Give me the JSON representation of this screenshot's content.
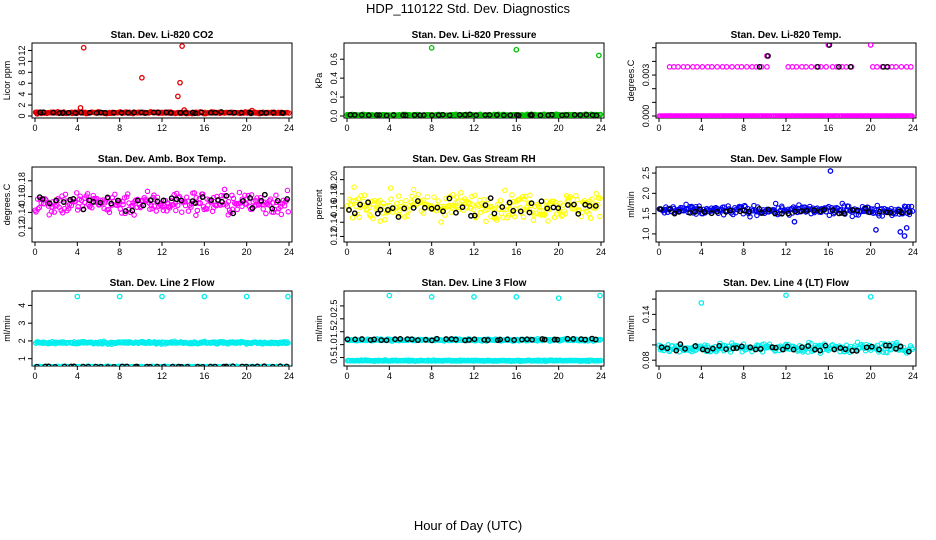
{
  "figure": {
    "title": "HDP_110122  Std. Dev. Diagnostics",
    "xlabel": "Hour of Day (UTC)"
  },
  "colors": {
    "red": "#e00000",
    "green": "#00c000",
    "magenta": "#ff00ff",
    "yellow": "#ffff00",
    "blue": "#0000ee",
    "cyan": "#00eeee",
    "black": "#000000"
  },
  "chart_data": [
    {
      "type": "scatter",
      "title": "Stan. Dev. Li-820 CO2",
      "ylabel": "Licor ppm",
      "xlim": [
        0,
        24
      ],
      "xticks": [
        0,
        4,
        8,
        12,
        16,
        20,
        24
      ],
      "ylim": [
        0,
        13
      ],
      "yticks": [
        0,
        2,
        4,
        6,
        8,
        10,
        12
      ],
      "ytick_labels": [
        "0",
        "2",
        "4",
        "6",
        "8",
        "10",
        "12"
      ],
      "color": "red",
      "series": [
        {
          "name": "baseline",
          "fill": {
            "mean": 0.6,
            "sd": 0.15
          }
        },
        {
          "name": "outliers",
          "x": [
            0.2,
            4.3,
            4.6,
            10.1,
            13.5,
            13.7,
            13.9,
            14.1,
            20.5
          ],
          "y": [
            0.4,
            1.5,
            12.5,
            7.0,
            3.6,
            6.1,
            12.8,
            1.1,
            1.0
          ]
        },
        {
          "name": "hourly",
          "color": "black",
          "fill": {
            "mean": 0.6,
            "sd": 0.1
          }
        }
      ]
    },
    {
      "type": "scatter",
      "title": "Stan. Dev. Li-820 Pressure",
      "ylabel": "kPa",
      "xlim": [
        0,
        24
      ],
      "xticks": [
        0,
        4,
        8,
        12,
        16,
        20,
        24
      ],
      "ylim": [
        0,
        0.75
      ],
      "yticks": [
        0.0,
        0.2,
        0.4,
        0.6
      ],
      "ytick_labels": [
        "0.0",
        "0.2",
        "0.4",
        "0.6"
      ],
      "color": "green",
      "series": [
        {
          "name": "baseline",
          "fill": {
            "mean": 0.01,
            "sd": 0.008
          }
        },
        {
          "name": "outliers",
          "x": [
            8.0,
            16.0,
            23.8,
            0.1
          ],
          "y": [
            0.72,
            0.7,
            0.64,
            0.0
          ]
        },
        {
          "name": "hourly",
          "color": "black",
          "fill": {
            "mean": 0.01,
            "sd": 0.005
          }
        }
      ]
    },
    {
      "type": "scatter",
      "title": "Stan. Dev. Li-820 Temp.",
      "ylabel": "degrees.C",
      "xlim": [
        0,
        24
      ],
      "xticks": [
        0,
        4,
        8,
        12,
        16,
        20,
        24
      ],
      "ylim": [
        0,
        0.0052
      ],
      "yticks": [
        0.0,
        0.001,
        0.002,
        0.003,
        0.004,
        0.005
      ],
      "ytick_labels": [
        "0.000",
        "",
        "",
        "0.003",
        "",
        ""
      ],
      "color": "magenta",
      "series": [
        {
          "name": "level-low",
          "fill": {
            "mean": 0.0,
            "sd": 0
          }
        },
        {
          "name": "level-high",
          "x": [
            1.0,
            1.4,
            1.8,
            2.3,
            2.7,
            3.2,
            3.6,
            4.1,
            4.6,
            5.0,
            5.5,
            6.0,
            6.4,
            6.9,
            7.4,
            7.8,
            8.3,
            8.8,
            9.2,
            9.7,
            10.2,
            12.2,
            12.6,
            13.0,
            13.5,
            13.9,
            14.4,
            14.9,
            15.3,
            15.8,
            16.4,
            16.8,
            17.3,
            17.7,
            18.2,
            20.2,
            20.6,
            21.1,
            21.5,
            22.0,
            22.4,
            22.9,
            23.4,
            23.8
          ],
          "y": "level:0.0036"
        },
        {
          "name": "outliers",
          "x": [
            10.2,
            16.0,
            20.0
          ],
          "y": [
            0.0044,
            0.0052,
            0.0052
          ]
        },
        {
          "name": "hourly-black",
          "x": [
            9.5,
            10.3,
            15.0,
            16.1,
            17.0,
            18.1,
            21.2,
            21.6
          ],
          "y": [
            0.0036,
            0.0044,
            0.0036,
            0.0052,
            0.0036,
            0.0036,
            0.0036,
            0.0036
          ]
        }
      ]
    },
    {
      "type": "scatter",
      "title": "Stan. Dev. Amb. Box Temp.",
      "ylabel": "degrees.C",
      "xlim": [
        0,
        24
      ],
      "xticks": [
        0,
        4,
        8,
        12,
        16,
        20,
        24
      ],
      "ylim": [
        0.105,
        0.195
      ],
      "yticks": [
        0.12,
        0.14,
        0.16,
        0.18
      ],
      "ytick_labels": [
        "0.12",
        "0.14",
        "0.16",
        "0.18"
      ],
      "color": "magenta",
      "series": [
        {
          "name": "minute",
          "fill": {
            "mean": 0.152,
            "sd": 0.015
          }
        },
        {
          "name": "hourly",
          "color": "black",
          "fill": {
            "mean": 0.152,
            "sd": 0.01
          }
        }
      ]
    },
    {
      "type": "scatter",
      "title": "Stan. Dev. Gas Stream RH",
      "ylabel": "percent",
      "xlim": [
        0,
        24
      ],
      "xticks": [
        0,
        4,
        8,
        12,
        16,
        20,
        24
      ],
      "ylim": [
        0.115,
        0.215
      ],
      "yticks": [
        0.12,
        0.14,
        0.16,
        0.18,
        0.2
      ],
      "ytick_labels": [
        "0.12",
        "0.14",
        "0.16",
        "0.18",
        "0.20"
      ],
      "color": "yellow",
      "series": [
        {
          "name": "minute",
          "fill": {
            "mean": 0.163,
            "sd": 0.018
          }
        },
        {
          "name": "hourly",
          "color": "black",
          "fill": {
            "mean": 0.16,
            "sd": 0.014
          }
        }
      ]
    },
    {
      "type": "scatter",
      "title": "Stan. Dev. Sample Flow",
      "ylabel": "ml/min",
      "xlim": [
        0,
        24
      ],
      "xticks": [
        0,
        4,
        8,
        12,
        16,
        20,
        24
      ],
      "ylim": [
        0.85,
        2.6
      ],
      "yticks": [
        1.0,
        1.5,
        2.0,
        2.5
      ],
      "ytick_labels": [
        "1.0",
        "1.5",
        "2.0",
        "2.5"
      ],
      "color": "blue",
      "series": [
        {
          "name": "minute",
          "fill": {
            "mean": 1.58,
            "sd": 0.12
          }
        },
        {
          "name": "outliers",
          "x": [
            16.2,
            22.8,
            23.2,
            23.4,
            20.5,
            12.8
          ],
          "y": [
            2.55,
            1.05,
            0.95,
            1.15,
            1.1,
            1.3
          ]
        },
        {
          "name": "hourly",
          "color": "black",
          "fill": {
            "mean": 1.55,
            "sd": 0.08
          }
        }
      ]
    },
    {
      "type": "scatter",
      "title": "Stan. Dev. Line 2 Flow",
      "ylabel": "ml/min",
      "xlim": [
        0,
        24
      ],
      "xticks": [
        0,
        4,
        8,
        12,
        16,
        20,
        24
      ],
      "ylim": [
        0.7,
        4.7
      ],
      "yticks": [
        1,
        2,
        3,
        4
      ],
      "ytick_labels": [
        "1",
        "2",
        "3",
        "4"
      ],
      "color": "cyan",
      "series": [
        {
          "name": "upper-band",
          "fill": {
            "mean": 1.9,
            "sd": 0.07
          }
        },
        {
          "name": "lower-band",
          "fill": {
            "mean": 0.55,
            "sd": 0.02
          }
        },
        {
          "name": "outliers",
          "x": [
            4.0,
            8.0,
            12.0,
            16.0,
            20.0,
            23.9
          ],
          "y": [
            4.5,
            4.5,
            4.5,
            4.5,
            4.5,
            4.5
          ]
        },
        {
          "name": "hourly",
          "color": "black",
          "fill": {
            "mean": 0.55,
            "sd": 0.02
          }
        }
      ]
    },
    {
      "type": "scatter",
      "title": "Stan. Dev. Line 3 Flow",
      "ylabel": "ml/min",
      "xlim": [
        0,
        24
      ],
      "xticks": [
        0,
        4,
        8,
        12,
        16,
        20,
        24
      ],
      "ylim": [
        0.25,
        3.0
      ],
      "yticks": [
        0.5,
        1.0,
        1.5,
        2.0,
        2.5
      ],
      "ytick_labels": [
        "0.5",
        "1.0",
        "1.5",
        "2.0",
        "2.5"
      ],
      "color": "cyan",
      "series": [
        {
          "name": "upper-band",
          "fill": {
            "mean": 1.18,
            "sd": 0.04
          }
        },
        {
          "name": "lower-band",
          "fill": {
            "mean": 0.38,
            "sd": 0.02
          }
        },
        {
          "name": "outliers",
          "x": [
            4.0,
            8.0,
            12.0,
            16.0,
            20.0,
            23.9
          ],
          "y": [
            2.9,
            2.85,
            2.85,
            2.85,
            2.8,
            2.9
          ]
        },
        {
          "name": "hourly",
          "color": "black",
          "fill": {
            "mean": 1.2,
            "sd": 0.03
          }
        }
      ]
    },
    {
      "type": "scatter",
      "title": "Stan. Dev. Line 4 (LT) Flow",
      "ylabel": "ml/min",
      "xlim": [
        0,
        24
      ],
      "xticks": [
        0,
        4,
        8,
        12,
        16,
        20,
        24
      ],
      "ylim": [
        0.075,
        0.168
      ],
      "yticks": [
        0.08,
        0.1,
        0.12,
        0.14,
        0.16
      ],
      "ytick_labels": [
        "0.08",
        "",
        "",
        "0.14",
        ""
      ],
      "color": "cyan",
      "series": [
        {
          "name": "minute",
          "fill": {
            "mean": 0.096,
            "sd": 0.006
          }
        },
        {
          "name": "outliers",
          "x": [
            4.0,
            12.0,
            20.0
          ],
          "y": [
            0.155,
            0.165,
            0.163
          ]
        },
        {
          "name": "hourly",
          "color": "black",
          "fill": {
            "mean": 0.096,
            "sd": 0.005
          }
        }
      ]
    }
  ]
}
